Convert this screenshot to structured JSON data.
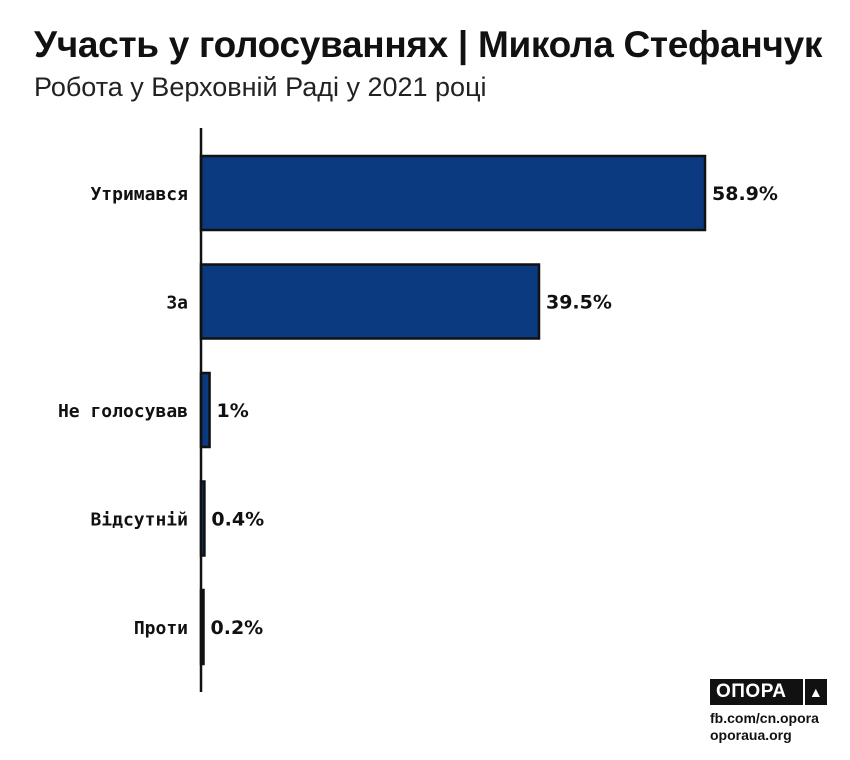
{
  "title": "Участь у голосуваннях | Микола Стефанчук",
  "subtitle": "Робота у Верховній Раді у 2021 році",
  "chart_data": {
    "type": "bar",
    "orientation": "horizontal",
    "title": "Участь у голосуваннях | Микола Стефанчук",
    "subtitle": "Робота у Верховній Раді у 2021 році",
    "categories": [
      "Утримався",
      "За",
      "Не голосував",
      "Відсутній",
      "Проти"
    ],
    "values": [
      58.9,
      39.5,
      1,
      0.4,
      0.2
    ],
    "value_labels": [
      "58.9%",
      "39.5%",
      "1%",
      "0.4%",
      "0.2%"
    ],
    "unit": "%",
    "xlim": [
      0,
      60
    ],
    "grid": false,
    "bar_color": "#0b3a80",
    "bar_outline": "#111111"
  },
  "branding": {
    "logo_text": "ОПОРА",
    "logo_icon": "triangle-up-icon",
    "logo_glyph": "▲",
    "source_line1": "fb.com/cn.opora",
    "source_line2": "oporaua.org"
  }
}
